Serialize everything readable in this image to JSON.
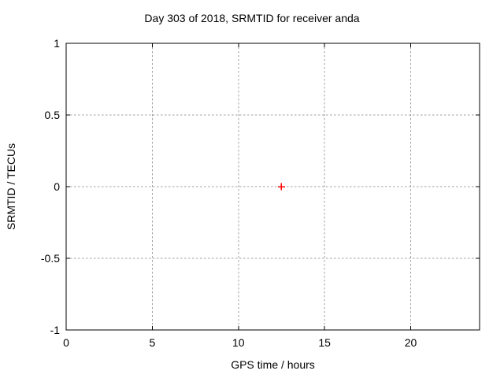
{
  "chart_data": {
    "type": "scatter",
    "title": "Day 303 of 2018, SRMTID for receiver anda",
    "xlabel": "GPS time / hours",
    "ylabel": "SRMTID / TECUs",
    "xlim": [
      0,
      24
    ],
    "ylim": [
      -1,
      1
    ],
    "x_ticks": [
      0,
      5,
      10,
      15,
      20
    ],
    "x_tick_labels": [
      "0",
      "5",
      "10",
      "15",
      "20"
    ],
    "y_ticks": [
      1,
      0.5,
      0,
      -0.5,
      -1
    ],
    "y_tick_labels": [
      "1",
      "0.5",
      "0",
      "-0.5",
      "-1"
    ],
    "grid": true,
    "legend_position": "none",
    "colors": {
      "marker": "#ff0000",
      "grid": "#a0a0a0",
      "border": "#000000",
      "text": "#000000",
      "background": "#ffffff"
    },
    "series": [
      {
        "name": "SRMTID",
        "marker": "plus",
        "color": "#ff0000",
        "points": [
          {
            "x": 12.5,
            "y": 0
          }
        ]
      }
    ]
  }
}
